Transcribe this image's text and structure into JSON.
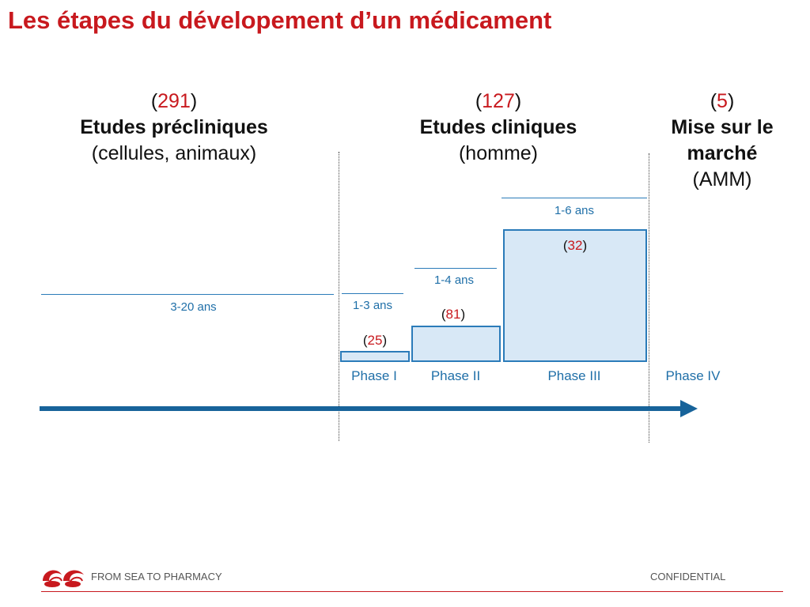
{
  "title": "Les étapes du dévelopement d’un médicament",
  "columns": [
    {
      "count_open": "(",
      "count": "291",
      "count_close": ")",
      "heading": "Etudes précliniques",
      "subheading": "(cellules, animaux)"
    },
    {
      "count_open": "(",
      "count": "127",
      "count_close": ")",
      "heading": "Etudes cliniques",
      "subheading": "(homme)"
    },
    {
      "count_open": "(",
      "count": "5",
      "count_close": ")",
      "heading_line1": "Mise sur le",
      "heading_line2": "marché",
      "subheading": "(AMM)"
    }
  ],
  "durations": {
    "preclinical": "3-20 ans",
    "phase1": "1-3 ans",
    "phase2": "1-4 ans",
    "phase3": "1-6 ans"
  },
  "box_counts": {
    "phase1": "25",
    "phase2": "81",
    "phase3": "32"
  },
  "phases": [
    "Phase I",
    "Phase II",
    "Phase III",
    "Phase IV"
  ],
  "footer": {
    "left": "FROM SEA TO PHARMACY",
    "right": "CONFIDENTIAL"
  },
  "colors": {
    "title_red": "#c8191e",
    "blue": "#2b7bb9",
    "arrow_blue": "#17639a",
    "box_fill": "#d8e8f6"
  }
}
